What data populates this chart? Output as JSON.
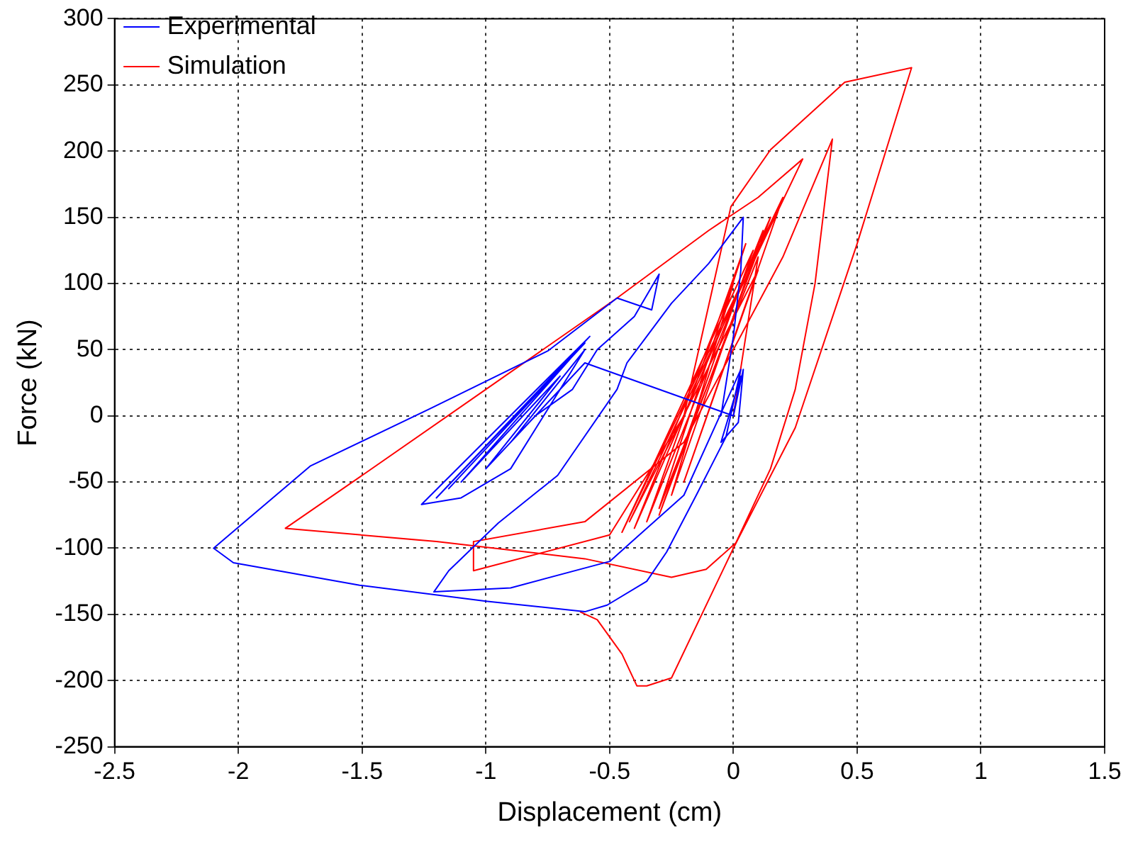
{
  "chart_data": {
    "type": "line",
    "xlabel": "Displacement (cm)",
    "ylabel": "Force (kN)",
    "xlim": [
      -2.5,
      1.5
    ],
    "xticks": [
      -2.5,
      -2,
      -1.5,
      -1,
      -0.5,
      0,
      0.5,
      1,
      1.5
    ],
    "ylim": [
      -250,
      300
    ],
    "yticks": [
      -250,
      -200,
      -150,
      -100,
      -50,
      0,
      50,
      100,
      150,
      200,
      250,
      300
    ],
    "grid": true,
    "legend": "top left",
    "marker": "none",
    "line_style": "solid",
    "series": [
      {
        "name": "Experimental",
        "color": "#0000ff",
        "x": [
          0,
          0.04,
          0.02,
          -0.05,
          0.03,
          0,
          -0.6,
          -1.0,
          -0.7,
          -1.1,
          -0.65,
          -1.15,
          -0.6,
          -1.2,
          -0.58,
          -1.26,
          -1.1,
          -0.9,
          -0.6,
          -0.9,
          -0.8,
          -0.65,
          -0.55,
          -0.4,
          -0.3,
          -0.33,
          -0.47,
          -0.75,
          -1.23,
          -1.71,
          -2.1,
          -2.02,
          -1.51,
          -1.0,
          -0.6,
          -0.51,
          -0.35,
          -0.27,
          -0.15,
          -0.03,
          0.03,
          -0.2,
          -0.5,
          -0.9,
          -1.21,
          -1.15,
          -0.95,
          -0.71,
          -0.47,
          -0.43,
          -0.25,
          -0.1,
          0.04,
          0.03,
          0,
          -0.05
        ],
        "values": [
          0,
          35,
          -5,
          -20,
          30,
          0,
          40,
          -40,
          30,
          -50,
          45,
          -55,
          55,
          -62,
          60,
          -67,
          -62,
          -40,
          50,
          -20,
          0,
          20,
          50,
          75,
          107,
          80,
          89,
          49,
          5,
          -38,
          -100,
          -111,
          -128,
          -140,
          -148,
          -143,
          -125,
          -103,
          -60,
          -16,
          35,
          -60,
          -110,
          -130,
          -133,
          -117,
          -81,
          -45,
          20,
          40,
          85,
          115,
          150,
          110,
          60,
          0
        ]
      },
      {
        "name": "Simulation",
        "color": "#ff0000",
        "x": [
          0,
          0.1,
          -0.3,
          0.05,
          -0.35,
          0.12,
          -0.25,
          0,
          -0.4,
          0.15,
          -0.3,
          0.08,
          -0.45,
          0.2,
          -0.2,
          0.1,
          -0.42,
          0.28,
          0.1,
          -0.1,
          -0.47,
          -1.0,
          -1.5,
          -1.81,
          -1.2,
          -0.6,
          -0.25,
          -0.11,
          0.01,
          0.15,
          0.25,
          0.33,
          0.4,
          0.2,
          -0.2,
          -0.6,
          -1.05,
          -1.05,
          -0.5,
          -0.2,
          -0.01,
          0.15,
          0.45,
          0.72,
          0.5,
          0.25,
          0,
          -0.25,
          -0.35,
          -0.39,
          -0.45,
          -0.55,
          -0.62
        ],
        "values": [
          0,
          120,
          -70,
          130,
          -80,
          140,
          -60,
          100,
          -85,
          150,
          -75,
          125,
          -88,
          165,
          -50,
          110,
          -80,
          194,
          165,
          140,
          89,
          20,
          -45,
          -85,
          -95,
          -108,
          -122,
          -116,
          -96,
          -40,
          20,
          100,
          209,
          120,
          -20,
          -80,
          -95,
          -117,
          -90,
          0,
          158,
          201,
          252,
          263,
          130,
          -9,
          -100,
          -198,
          -204,
          -204,
          -180,
          -154,
          -148
        ]
      }
    ]
  }
}
